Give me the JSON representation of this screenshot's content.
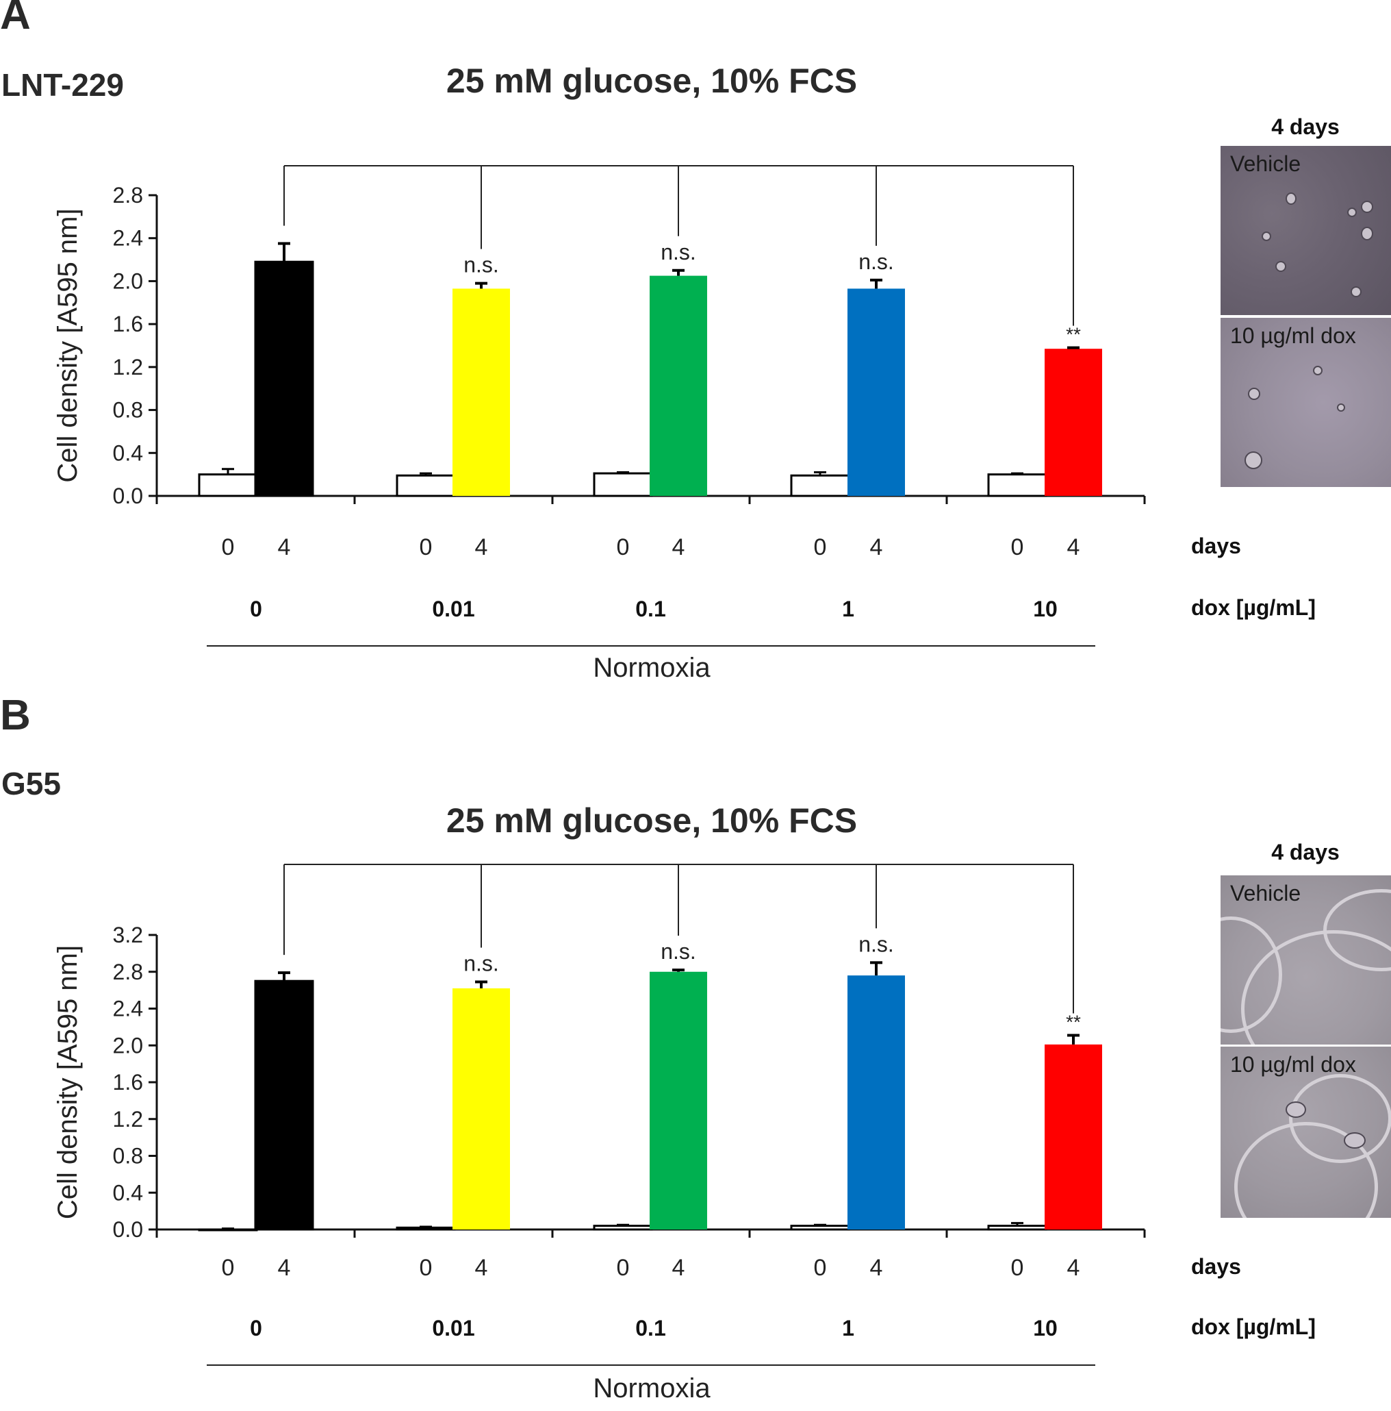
{
  "panels": [
    {
      "id": "A",
      "letter": "A",
      "cell_line": "LNT-229",
      "condition": "25 mM glucose, 10% FCS",
      "day_labels": [
        "0",
        "4"
      ],
      "doses": [
        "0",
        "0.01",
        "0.1",
        "1",
        "10"
      ],
      "row_label_days": "days",
      "row_label_dose": "dox [µg/mL]",
      "group_label": "Normoxia",
      "micro_title": "4 days",
      "micro_labels": [
        "Vehicle",
        "10 µg/ml dox"
      ],
      "chart_data": {
        "type": "bar",
        "ylabel": "Cell density [A595 nm]",
        "ylim": [
          0,
          2.8
        ],
        "yticks": [
          "0.0",
          "0.4",
          "0.8",
          "1.2",
          "1.6",
          "2.0",
          "2.4",
          "2.8"
        ],
        "day0_values": [
          0.2,
          0.19,
          0.21,
          0.19,
          0.2
        ],
        "day0_errors": [
          0.05,
          0.02,
          0.01,
          0.03,
          0.01
        ],
        "day4_values": [
          2.18,
          1.93,
          2.05,
          1.93,
          1.37
        ],
        "day4_errors": [
          0.17,
          0.05,
          0.05,
          0.08,
          0.01
        ],
        "day4_colors": [
          "#000000",
          "#ffff00",
          "#00b050",
          "#0070c0",
          "#ff0000"
        ],
        "significance": [
          "",
          "n.s.",
          "n.s.",
          "n.s.",
          "**"
        ]
      }
    },
    {
      "id": "B",
      "letter": "B",
      "cell_line": "G55",
      "condition": "25 mM glucose, 10% FCS",
      "day_labels": [
        "0",
        "4"
      ],
      "doses": [
        "0",
        "0.01",
        "0.1",
        "1",
        "10"
      ],
      "row_label_days": "days",
      "row_label_dose": "dox [µg/mL]",
      "group_label": "Normoxia",
      "micro_title": "4 days",
      "micro_labels": [
        "Vehicle",
        "10 µg/ml dox"
      ],
      "chart_data": {
        "type": "bar",
        "ylabel": "Cell density [A595 nm]",
        "ylim": [
          0,
          3.2
        ],
        "yticks": [
          "0.0",
          "0.4",
          "0.8",
          "1.2",
          "1.6",
          "2.0",
          "2.4",
          "2.8",
          "3.2"
        ],
        "day0_values": [
          0.0,
          0.02,
          0.04,
          0.04,
          0.04
        ],
        "day0_errors": [
          0.01,
          0.01,
          0.01,
          0.01,
          0.03
        ],
        "day4_values": [
          2.7,
          2.62,
          2.8,
          2.76,
          2.01
        ],
        "day4_errors": [
          0.09,
          0.07,
          0.02,
          0.14,
          0.1
        ],
        "day4_colors": [
          "#000000",
          "#ffff00",
          "#00b050",
          "#0070c0",
          "#ff0000"
        ],
        "significance": [
          "",
          "n.s.",
          "n.s.",
          "n.s.",
          "**"
        ]
      }
    }
  ]
}
